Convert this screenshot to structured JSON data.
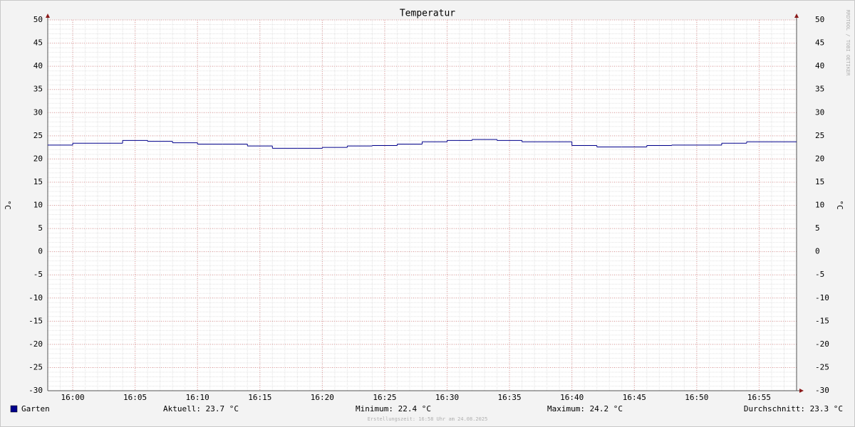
{
  "chart_data": {
    "type": "line",
    "title": "Temperatur",
    "ylabel": "°C",
    "watermark": "RRDTOOL / TOBI OETIKER",
    "step": true,
    "grid": true,
    "x": [
      958,
      960,
      962,
      964,
      966,
      968,
      970,
      972,
      974,
      976,
      978,
      980,
      982,
      984,
      986,
      988,
      990,
      992,
      994,
      996,
      998,
      1000,
      1002,
      1004,
      1006,
      1008,
      1010,
      1012,
      1014,
      1016
    ],
    "series": [
      {
        "name": "Garten",
        "color": "#00008b",
        "values": [
          23.0,
          23.4,
          23.4,
          24.0,
          23.8,
          23.5,
          23.2,
          23.2,
          22.8,
          22.3,
          22.3,
          22.5,
          22.8,
          22.9,
          23.2,
          23.7,
          24.0,
          24.2,
          24.0,
          23.7,
          23.7,
          22.9,
          22.6,
          22.6,
          22.9,
          23.0,
          23.0,
          23.4,
          23.7,
          23.7
        ]
      }
    ],
    "xlim": [
      958,
      1018
    ],
    "xticks": [
      {
        "value": 960,
        "label": "16:00"
      },
      {
        "value": 965,
        "label": "16:05"
      },
      {
        "value": 970,
        "label": "16:10"
      },
      {
        "value": 975,
        "label": "16:15"
      },
      {
        "value": 980,
        "label": "16:20"
      },
      {
        "value": 985,
        "label": "16:25"
      },
      {
        "value": 990,
        "label": "16:30"
      },
      {
        "value": 995,
        "label": "16:35"
      },
      {
        "value": 1000,
        "label": "16:40"
      },
      {
        "value": 1005,
        "label": "16:45"
      },
      {
        "value": 1010,
        "label": "16:50"
      },
      {
        "value": 1015,
        "label": "16:55"
      }
    ],
    "ylim": [
      -30,
      50
    ],
    "yticks": [
      -30,
      -25,
      -20,
      -15,
      -10,
      -5,
      0,
      5,
      10,
      15,
      20,
      25,
      30,
      35,
      40,
      45,
      50
    ],
    "stats": [
      "Aktuell: 23.7 °C",
      "Minimum: 22.4 °C",
      "Maximum: 24.2 °C",
      "Durchschnitt: 23.3 °C"
    ],
    "footer": "Erstellungszeit: 16:58 Uhr am 24.08.2025"
  }
}
